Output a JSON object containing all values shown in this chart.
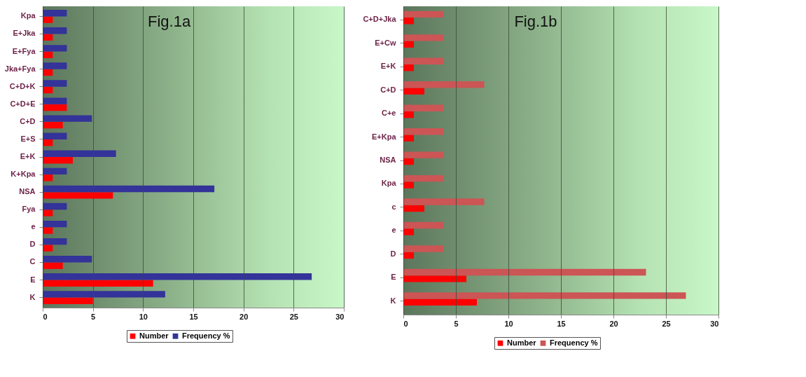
{
  "chart_data": [
    {
      "type": "bar",
      "orientation": "horizontal",
      "title": "Fig.1a",
      "categories": [
        "Kpa",
        "E+Jka",
        "E+Fya",
        "Jka+Fya",
        "C+D+K",
        "C+D+E",
        "C+D",
        "E+S",
        "E+K",
        "K+Kpa",
        "NSA",
        "Fya",
        "e",
        "D",
        "C",
        "E",
        "K"
      ],
      "series": [
        {
          "name": "Number",
          "color": "#ff0000",
          "values": [
            1,
            1,
            1,
            1,
            1,
            2.4,
            2,
            1,
            3,
            1,
            7,
            1,
            1,
            1,
            2,
            11,
            5
          ]
        },
        {
          "name": "Frequency %",
          "color": "#333399",
          "values": [
            2.4,
            2.4,
            2.4,
            2.4,
            2.4,
            2.4,
            4.9,
            2.4,
            7.3,
            2.4,
            17.1,
            2.4,
            2.4,
            2.4,
            4.9,
            26.8,
            12.2
          ]
        }
      ],
      "xlim": [
        0,
        30
      ],
      "xticks": [
        0,
        5,
        10,
        15,
        20,
        25,
        30
      ],
      "grid": "x",
      "legend": "bottom"
    },
    {
      "type": "bar",
      "orientation": "horizontal",
      "title": "Fig.1b",
      "categories": [
        "C+D+Jka",
        "E+Cw",
        "E+K",
        "C+D",
        "C+e",
        "E+Kpa",
        "NSA",
        "Kpa",
        "c",
        "e",
        "D",
        "E",
        "K"
      ],
      "series": [
        {
          "name": "Number",
          "color": "#ff0000",
          "values": [
            1,
            1,
            1,
            2,
            1,
            1,
            1,
            1,
            2,
            1,
            1,
            6,
            7
          ]
        },
        {
          "name": "Frequency %",
          "color": "#cc5555",
          "values": [
            3.8,
            3.8,
            3.8,
            7.7,
            3.8,
            3.8,
            3.8,
            3.8,
            7.7,
            3.8,
            3.8,
            23.1,
            26.9
          ]
        }
      ],
      "xlim": [
        0,
        30
      ],
      "xticks": [
        0,
        5,
        10,
        15,
        20,
        25,
        30
      ],
      "grid": "x",
      "legend": "bottom"
    }
  ]
}
